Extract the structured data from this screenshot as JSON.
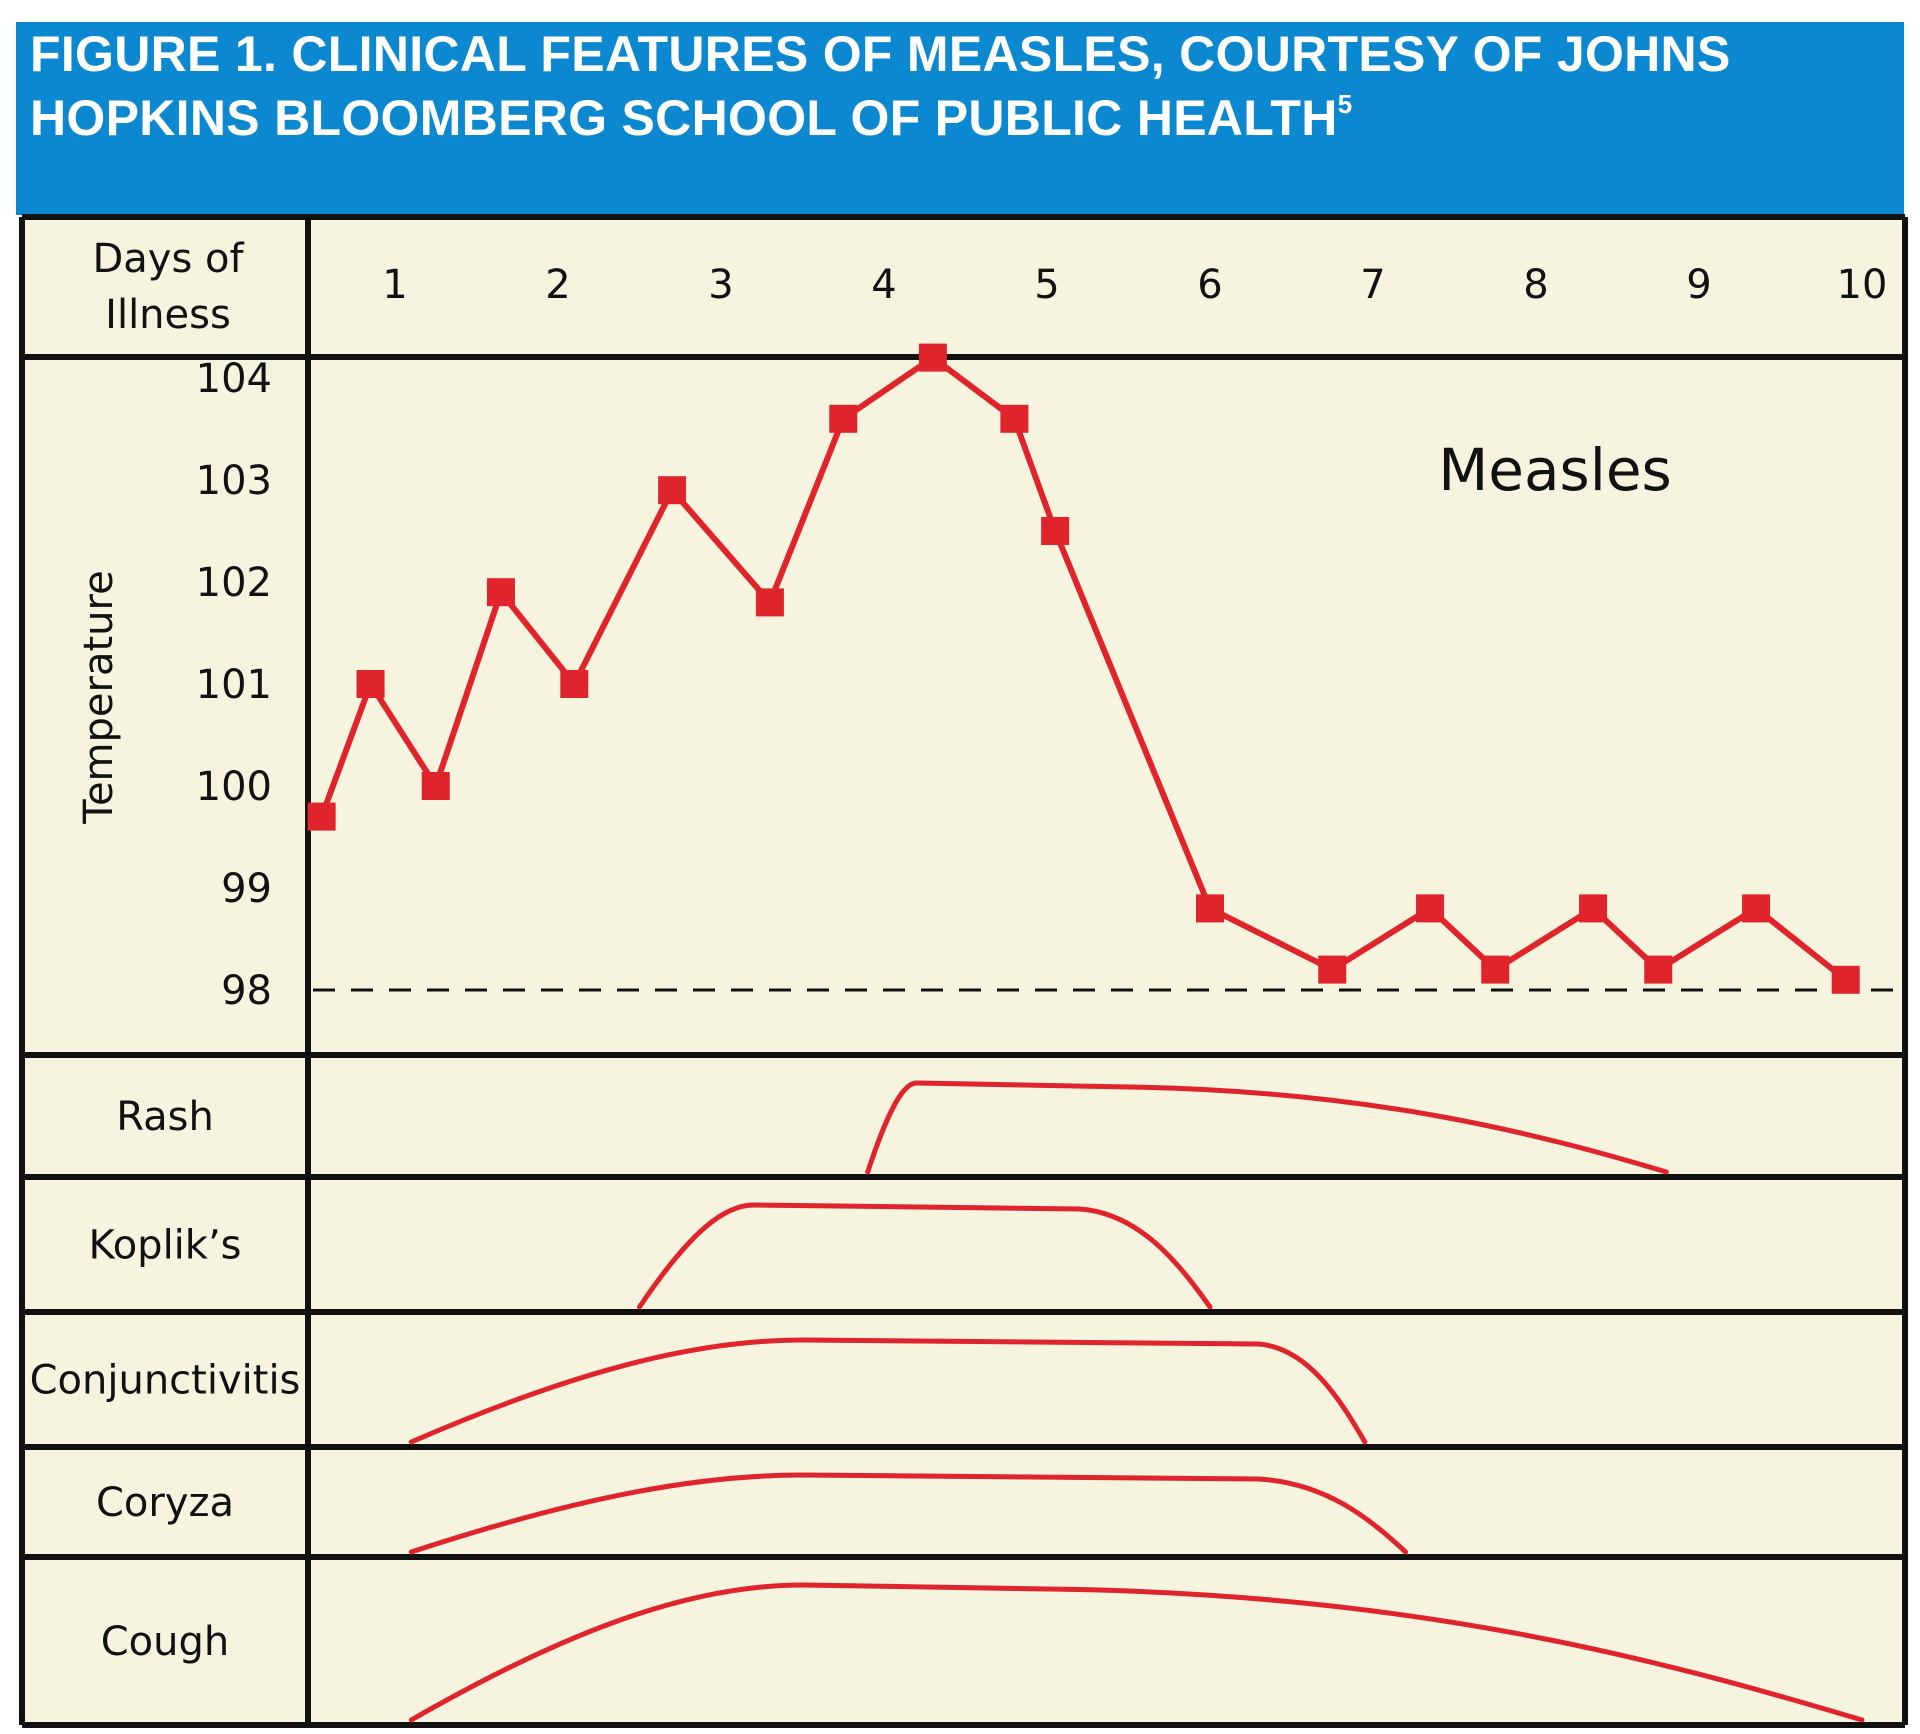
{
  "header": {
    "title": "FIGURE 1. CLINICAL FEATURES OF MEASLES, COURTESY OF JOHNS HOPKINS BLOOMBERG SCHOOL OF PUBLIC HEALTH",
    "footnote_ref": "5"
  },
  "colors": {
    "banner": "#0b88cf",
    "panel_background": "#f6f3df",
    "series_line": "#e0242c",
    "grid_border": "#111111"
  },
  "chart_data": {
    "type": "line",
    "series_label": "Measles",
    "x_header": "Days of Illness",
    "x_ticks": [
      "1",
      "2",
      "3",
      "4",
      "5",
      "6",
      "7",
      "8",
      "9",
      "10"
    ],
    "ylabel": "Temperature",
    "y_ticks": [
      "104",
      "103",
      "102",
      "101",
      "100",
      "99",
      "98"
    ],
    "ylim": [
      98,
      104
    ],
    "baseline": {
      "value": 98,
      "style": "dashed"
    },
    "temperature": {
      "x": [
        0.55,
        0.85,
        1.25,
        1.65,
        2.1,
        2.7,
        3.3,
        3.75,
        4.3,
        4.8,
        5.05,
        6.0,
        6.75,
        7.35,
        7.75,
        8.35,
        8.75,
        9.35,
        9.9
      ],
      "y": [
        99.7,
        101.0,
        100.0,
        101.9,
        101.0,
        102.9,
        101.8,
        103.6,
        104.2,
        103.6,
        102.5,
        98.8,
        98.2,
        98.8,
        98.2,
        98.8,
        98.2,
        98.8,
        98.1
      ]
    },
    "symptoms": [
      {
        "name": "Rash",
        "start": 3.9,
        "plateau_start": 4.2,
        "plateau_end": 5.5,
        "end": 8.8
      },
      {
        "name": "Koplik’s",
        "start": 2.5,
        "plateau_start": 3.2,
        "plateau_end": 5.2,
        "end": 6.0
      },
      {
        "name": "Conjunctivitis",
        "start": 1.1,
        "plateau_start": 3.5,
        "plateau_end": 6.3,
        "end": 6.95
      },
      {
        "name": "Coryza",
        "start": 1.1,
        "plateau_start": 3.5,
        "plateau_end": 6.3,
        "end": 7.2
      },
      {
        "name": "Cough",
        "start": 1.1,
        "plateau_start": 3.5,
        "plateau_end": 5.0,
        "end": 10.0
      }
    ]
  }
}
